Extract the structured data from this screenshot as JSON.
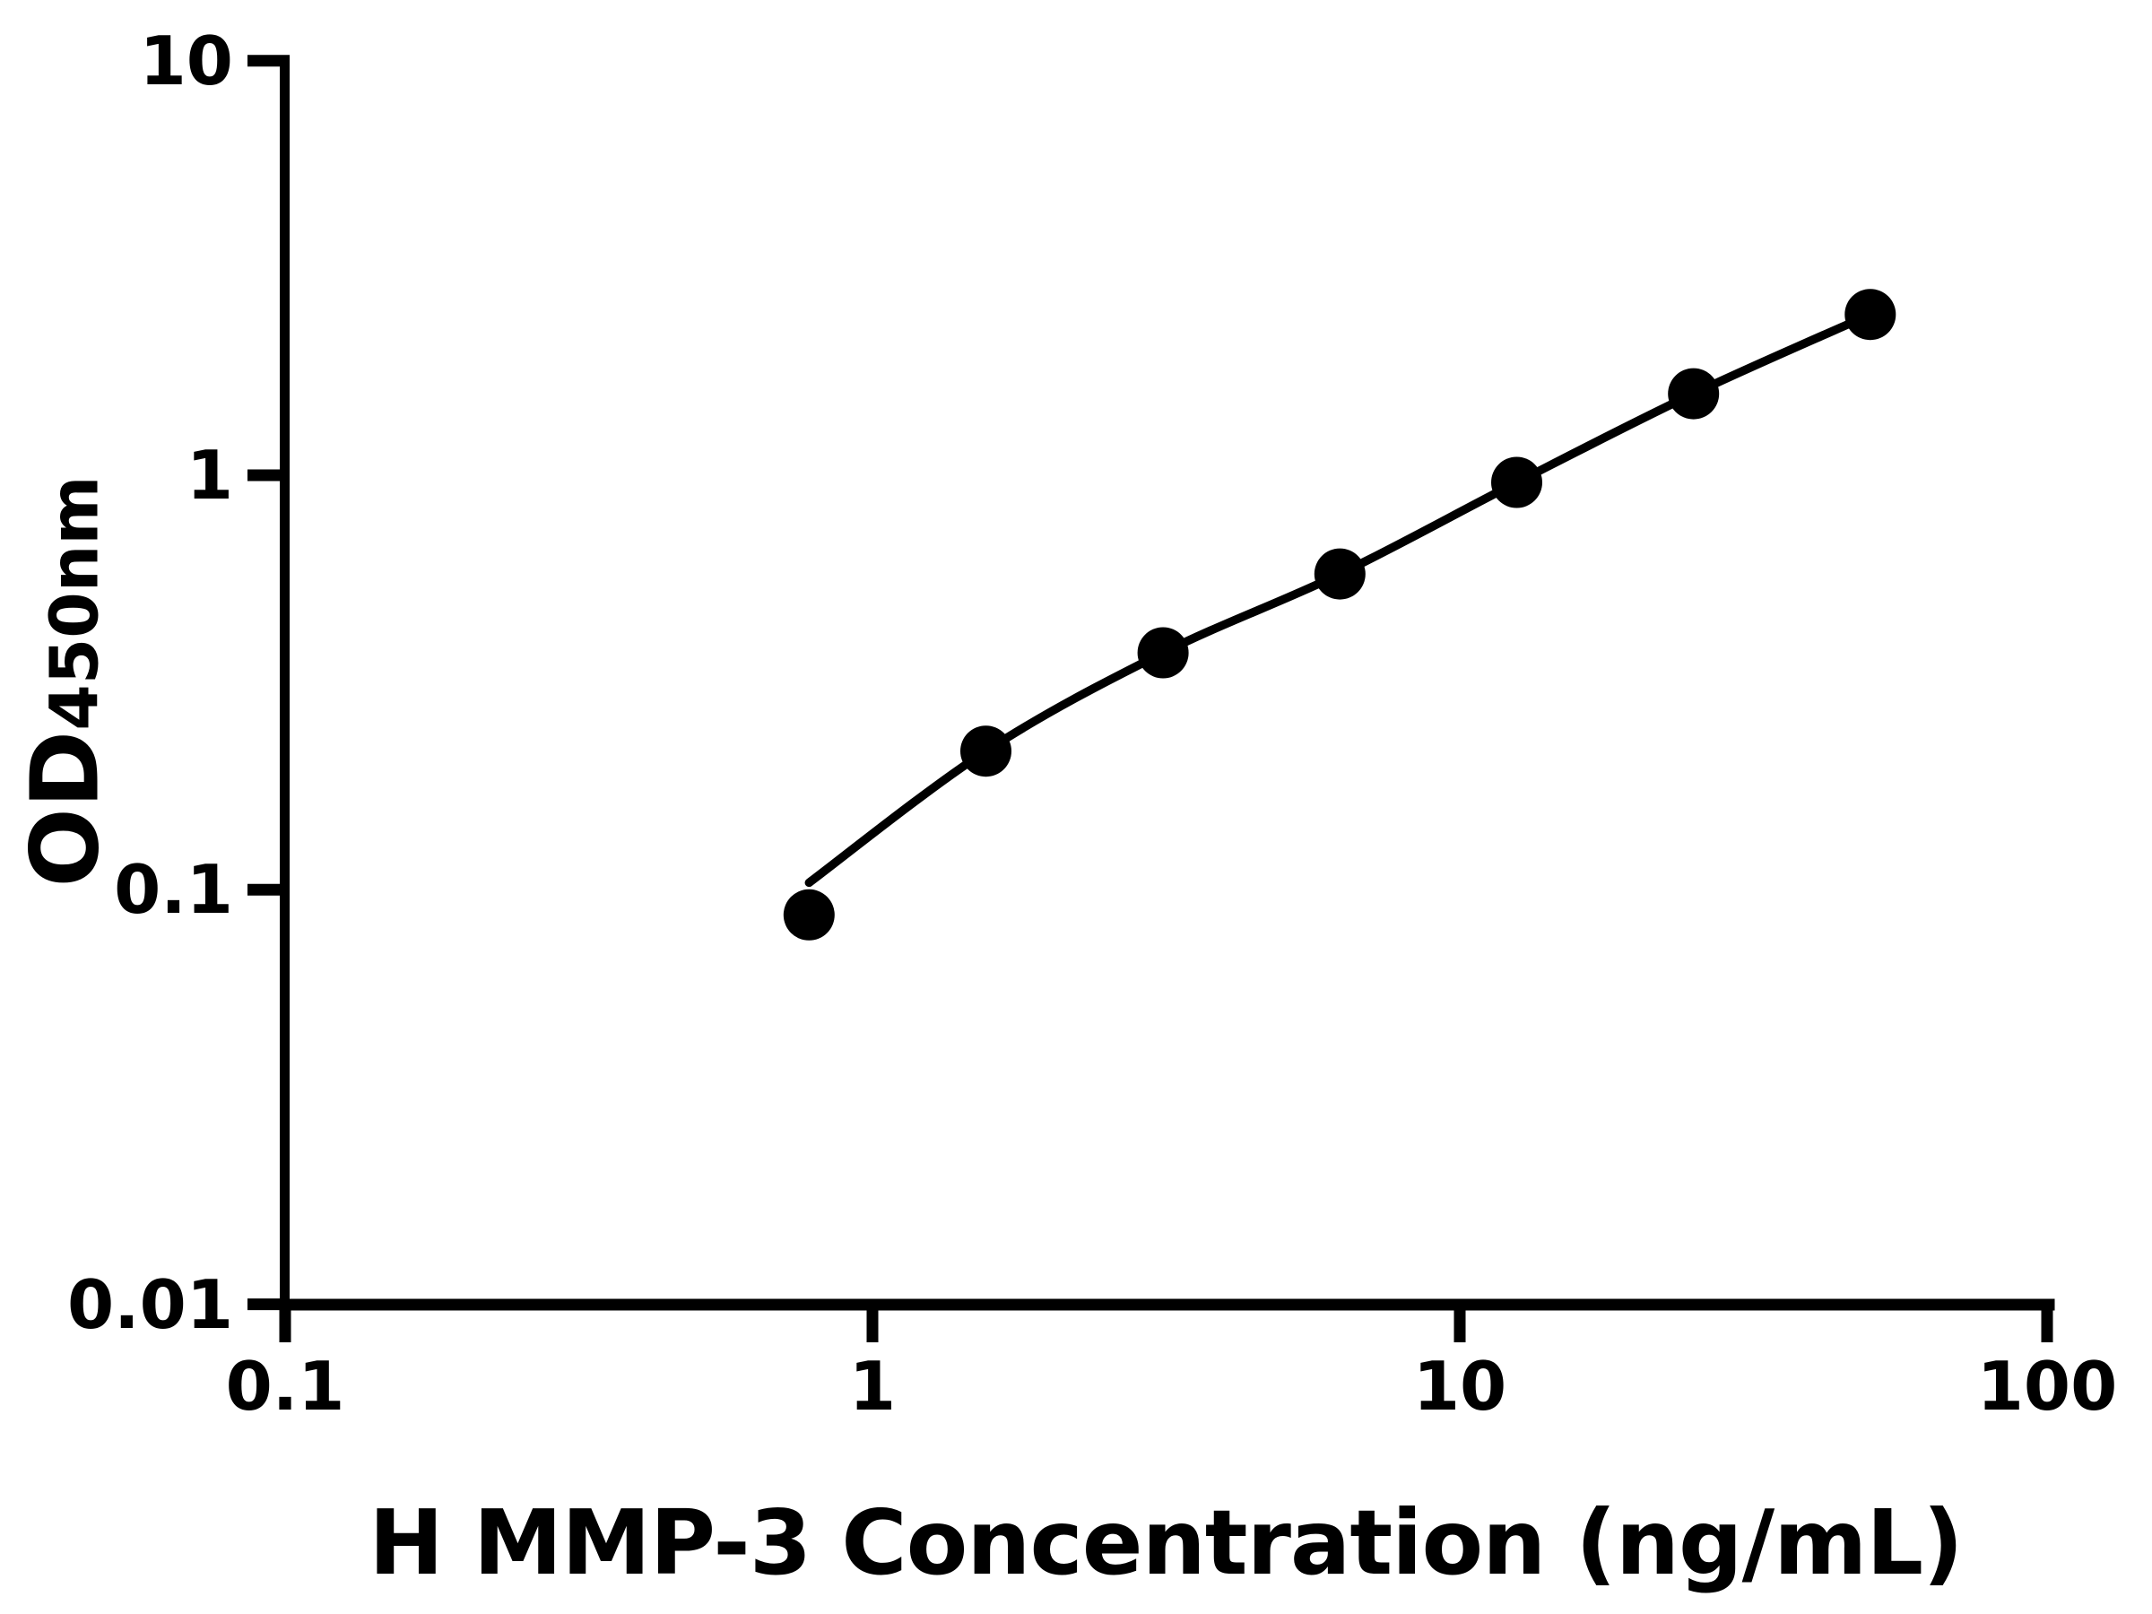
{
  "chart_data": {
    "type": "scatter",
    "title": "",
    "xlabel": "H MMP-3 Concentration (ng/mL)",
    "ylabel": "OD450nm",
    "ylabel_main": "OD",
    "ylabel_sub": "450nm",
    "x_scale": "log",
    "y_scale": "log",
    "xlim": [
      0.1,
      100
    ],
    "ylim": [
      0.01,
      10
    ],
    "x_ticks": [
      0.1,
      1,
      10,
      100
    ],
    "x_tick_labels": [
      "0.1",
      "1",
      "10",
      "100"
    ],
    "y_ticks": [
      10,
      1,
      0.1,
      0.01
    ],
    "y_tick_labels": [
      "10",
      "1",
      "0.1",
      "0.01"
    ],
    "grid": false,
    "legend": null,
    "marker_color": "#000000",
    "line_color": "#000000",
    "background_color": "#ffffff",
    "points": [
      {
        "x": 0.78,
        "y": 0.087
      },
      {
        "x": 1.56,
        "y": 0.216
      },
      {
        "x": 3.125,
        "y": 0.373
      },
      {
        "x": 6.25,
        "y": 0.578
      },
      {
        "x": 12.5,
        "y": 0.961
      },
      {
        "x": 25,
        "y": 1.573
      },
      {
        "x": 50,
        "y": 2.442
      }
    ],
    "fit_curve_points": [
      {
        "x": 0.78,
        "y": 0.104
      },
      {
        "x": 1.56,
        "y": 0.216
      },
      {
        "x": 3.125,
        "y": 0.373
      },
      {
        "x": 6.25,
        "y": 0.578
      },
      {
        "x": 12.5,
        "y": 0.961
      },
      {
        "x": 25,
        "y": 1.573
      },
      {
        "x": 50,
        "y": 2.442
      }
    ]
  }
}
